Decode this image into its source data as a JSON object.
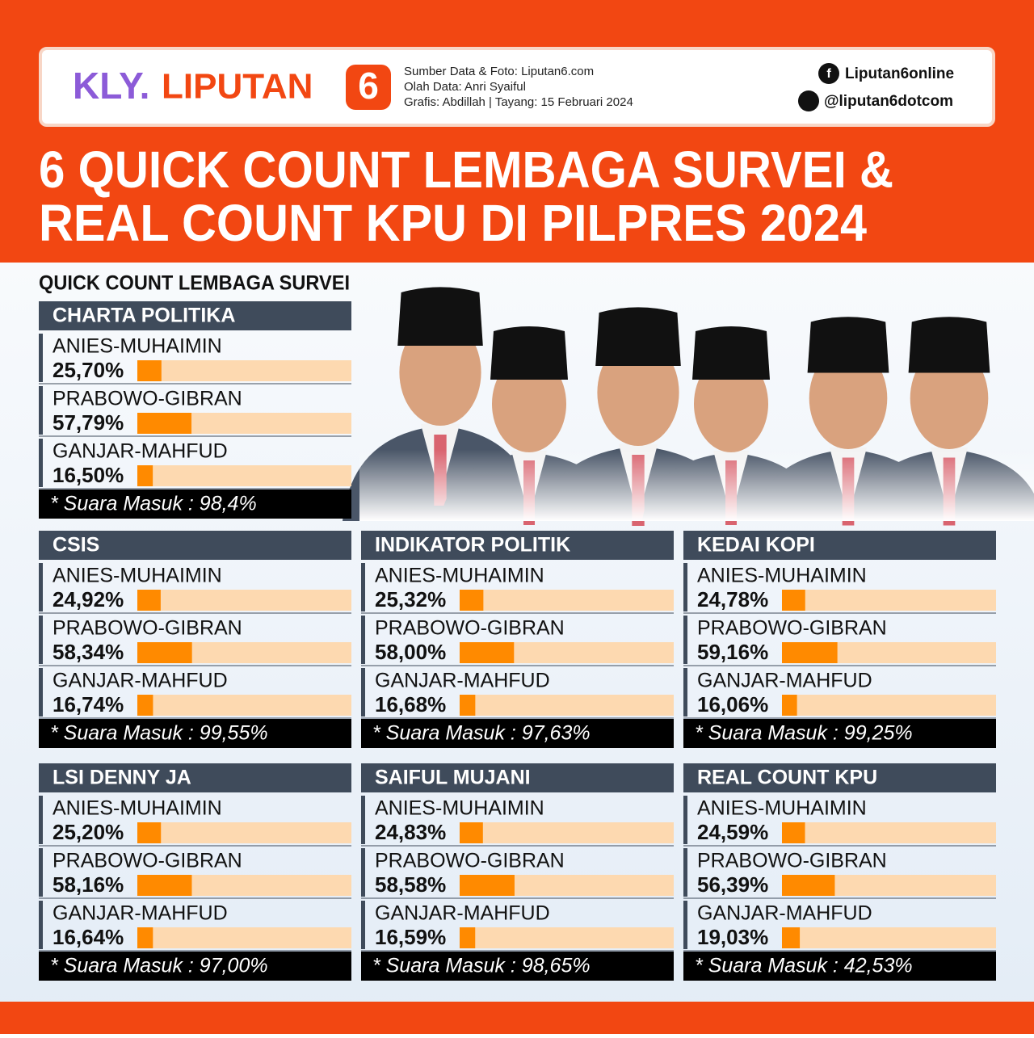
{
  "header": {
    "logo_kly": "KLY.",
    "logo_name": "LIPUTAN",
    "logo_number": "6",
    "credits": [
      "Sumber Data & Foto: Liputan6.com",
      "Olah Data: Anri Syaiful",
      "Grafis: Abdillah | Tayang: 15 Februari 2024"
    ],
    "facebook": "Liputan6online",
    "twitter": "@liputan6dotcom"
  },
  "title": [
    "6 QUICK COUNT LEMBAGA SURVEI &",
    "REAL COUNT KPU DI PILPRES 2024"
  ],
  "section_label": "QUICK COUNT LEMBAGA SURVEI",
  "panels": [
    {
      "title": "CHARTA POLITIKA",
      "candidates": [
        {
          "name": "ANIES-MUHAIMIN",
          "value": 25.7,
          "value_label": "25,70%"
        },
        {
          "name": "PRABOWO-GIBRAN",
          "value": 57.79,
          "value_label": "57,79%"
        },
        {
          "name": "GANJAR-MAHFUD",
          "value": 16.5,
          "value_label": "16,50%"
        }
      ],
      "note": "* Suara Masuk : 98,4%"
    },
    {
      "title": "CSIS",
      "candidates": [
        {
          "name": "ANIES-MUHAIMIN",
          "value": 24.92,
          "value_label": "24,92%"
        },
        {
          "name": "PRABOWO-GIBRAN",
          "value": 58.34,
          "value_label": "58,34%"
        },
        {
          "name": "GANJAR-MAHFUD",
          "value": 16.74,
          "value_label": "16,74%"
        }
      ],
      "note": "* Suara Masuk : 99,55%"
    },
    {
      "title": "INDIKATOR POLITIK",
      "candidates": [
        {
          "name": "ANIES-MUHAIMIN",
          "value": 25.32,
          "value_label": "25,32%"
        },
        {
          "name": "PRABOWO-GIBRAN",
          "value": 58.0,
          "value_label": "58,00%"
        },
        {
          "name": "GANJAR-MAHFUD",
          "value": 16.68,
          "value_label": "16,68%"
        }
      ],
      "note": "* Suara Masuk : 97,63%"
    },
    {
      "title": "KEDAI KOPI",
      "candidates": [
        {
          "name": "ANIES-MUHAIMIN",
          "value": 24.78,
          "value_label": "24,78%"
        },
        {
          "name": "PRABOWO-GIBRAN",
          "value": 59.16,
          "value_label": "59,16%"
        },
        {
          "name": "GANJAR-MAHFUD",
          "value": 16.06,
          "value_label": "16,06%"
        }
      ],
      "note": "* Suara Masuk : 99,25%"
    },
    {
      "title": "LSI DENNY JA",
      "candidates": [
        {
          "name": "ANIES-MUHAIMIN",
          "value": 25.2,
          "value_label": "25,20%"
        },
        {
          "name": "PRABOWO-GIBRAN",
          "value": 58.16,
          "value_label": "58,16%"
        },
        {
          "name": "GANJAR-MAHFUD",
          "value": 16.64,
          "value_label": "16,64%"
        }
      ],
      "note": "* Suara Masuk : 97,00%"
    },
    {
      "title": "SAIFUL MUJANI",
      "candidates": [
        {
          "name": "ANIES-MUHAIMIN",
          "value": 24.83,
          "value_label": "24,83%"
        },
        {
          "name": "PRABOWO-GIBRAN",
          "value": 58.58,
          "value_label": "58,58%"
        },
        {
          "name": "GANJAR-MAHFUD",
          "value": 16.59,
          "value_label": "16,59%"
        }
      ],
      "note": "* Suara Masuk : 98,65%"
    },
    {
      "title": "REAL COUNT KPU",
      "candidates": [
        {
          "name": "ANIES-MUHAIMIN",
          "value": 24.59,
          "value_label": "24,59%"
        },
        {
          "name": "PRABOWO-GIBRAN",
          "value": 56.39,
          "value_label": "56,39%"
        },
        {
          "name": "GANJAR-MAHFUD",
          "value": 19.03,
          "value_label": "19,03%"
        }
      ],
      "note": "* Suara Masuk : 42,53%"
    }
  ]
}
